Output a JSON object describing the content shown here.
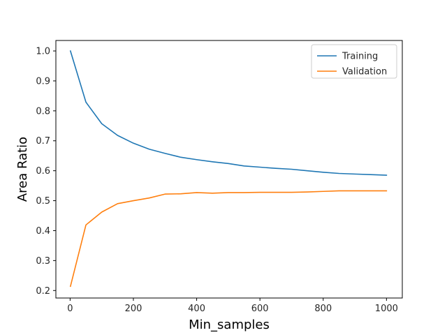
{
  "chart_data": {
    "type": "line",
    "title": "",
    "xlabel": "Min_samples",
    "ylabel": "Area Ratio",
    "xlim": [
      -45,
      1050
    ],
    "ylim": [
      0.175,
      1.035
    ],
    "xticks": [
      0,
      200,
      400,
      600,
      800,
      1000
    ],
    "yticks": [
      0.2,
      0.3,
      0.4,
      0.5,
      0.6,
      0.7,
      0.8,
      0.9,
      1.0
    ],
    "xtick_labels": [
      "0",
      "200",
      "400",
      "600",
      "800",
      "1000"
    ],
    "ytick_labels": [
      "0.2",
      "0.3",
      "0.4",
      "0.5",
      "0.6",
      "0.7",
      "0.8",
      "0.9",
      "1.0"
    ],
    "grid": false,
    "legend_position": "top-right",
    "x": [
      1,
      50,
      100,
      150,
      200,
      250,
      300,
      350,
      400,
      450,
      500,
      550,
      600,
      650,
      700,
      750,
      800,
      850,
      900,
      950,
      1000
    ],
    "series": [
      {
        "name": "Training",
        "color": "#1f77b4",
        "values": [
          1.0,
          0.829,
          0.757,
          0.718,
          0.692,
          0.672,
          0.658,
          0.645,
          0.637,
          0.63,
          0.624,
          0.616,
          0.612,
          0.608,
          0.605,
          0.6,
          0.595,
          0.591,
          0.589,
          0.587,
          0.585
        ]
      },
      {
        "name": "Validation",
        "color": "#ff7f0e",
        "values": [
          0.214,
          0.419,
          0.462,
          0.49,
          0.5,
          0.509,
          0.522,
          0.523,
          0.527,
          0.525,
          0.527,
          0.527,
          0.528,
          0.528,
          0.528,
          0.529,
          0.531,
          0.533,
          0.533,
          0.533,
          0.533
        ]
      }
    ]
  }
}
